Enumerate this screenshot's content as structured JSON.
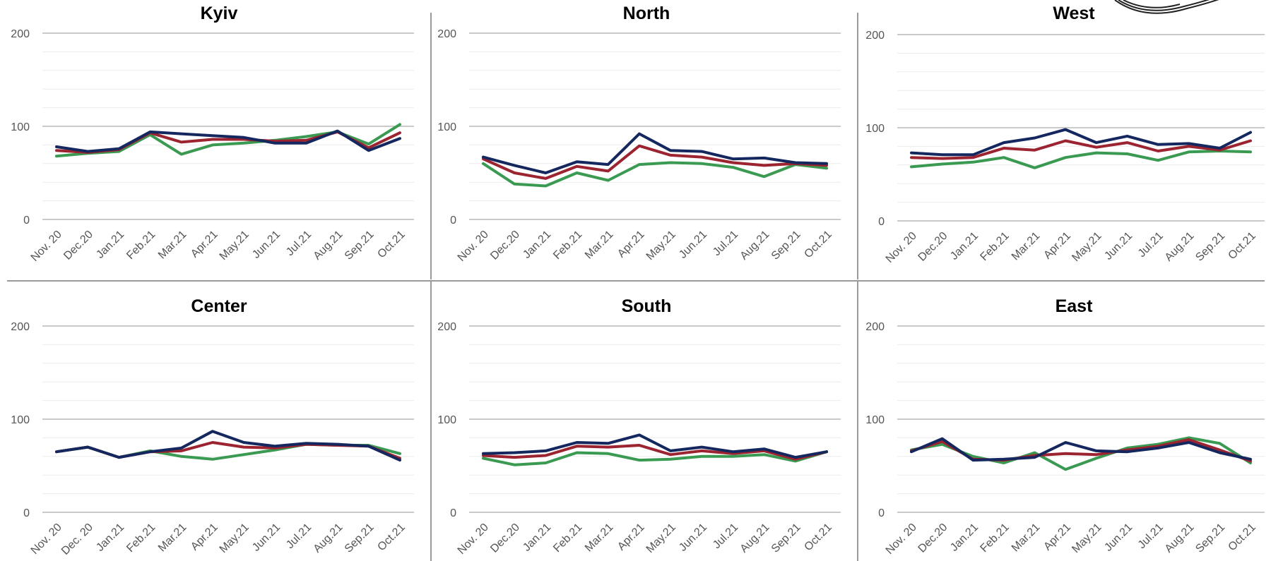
{
  "colors": {
    "series": [
      "#3a9a52",
      "#9b2430",
      "#14275e"
    ]
  },
  "chart_data": [
    {
      "type": "line",
      "title": "Kyiv",
      "categories": [
        "Nov. 20",
        "Dec.20",
        "Jan.21",
        "Feb.21",
        "Mar.21",
        "Apr.21",
        "May.21",
        "Jun.21",
        "Jul.21",
        "Aug.21",
        "Sep.21",
        "Oct.21"
      ],
      "ylim": [
        0,
        200
      ],
      "yticks": [
        "0",
        "100",
        "200"
      ],
      "series": [
        {
          "values": [
            68,
            71,
            73,
            91,
            70,
            80,
            82,
            85,
            89,
            94,
            81,
            102
          ]
        },
        {
          "values": [
            74,
            72,
            75,
            93,
            83,
            86,
            86,
            84,
            85,
            94,
            77,
            93
          ]
        },
        {
          "values": [
            78,
            73,
            76,
            94,
            92,
            90,
            88,
            82,
            82,
            95,
            74,
            87
          ]
        }
      ]
    },
    {
      "type": "line",
      "title": "North",
      "categories": [
        "Nov. 20",
        "Dec.20",
        "Jan.21",
        "Feb.21",
        "Mar.21",
        "Apr.21",
        "May.21",
        "Jun.21",
        "Jul.21",
        "Aug.21",
        "Sep.21",
        "Oct.21"
      ],
      "ylim": [
        0,
        200
      ],
      "yticks": [
        "0",
        "100",
        "200"
      ],
      "series": [
        {
          "values": [
            60,
            38,
            36,
            50,
            42,
            59,
            61,
            60,
            56,
            46,
            59,
            55
          ]
        },
        {
          "values": [
            65,
            50,
            44,
            57,
            52,
            79,
            69,
            67,
            61,
            58,
            60,
            58
          ]
        },
        {
          "values": [
            67,
            58,
            50,
            62,
            59,
            92,
            74,
            73,
            65,
            66,
            61,
            60
          ]
        }
      ]
    },
    {
      "type": "line",
      "title": "West",
      "categories": [
        "Nov. 20",
        "Dec.20",
        "Jan.21",
        "Feb.21",
        "Mar.21",
        "Apr.21",
        "May.21",
        "Jun.21",
        "Jul.21",
        "Aug.21",
        "Sep.21",
        "Oct.21"
      ],
      "ylim": [
        0,
        200
      ],
      "yticks": [
        "0",
        "100",
        "200"
      ],
      "series": [
        {
          "values": [
            58,
            61,
            63,
            68,
            57,
            68,
            73,
            72,
            65,
            74,
            75,
            74
          ]
        },
        {
          "values": [
            68,
            67,
            68,
            78,
            76,
            86,
            79,
            84,
            75,
            80,
            76,
            86
          ]
        },
        {
          "values": [
            73,
            71,
            71,
            84,
            89,
            98,
            84,
            91,
            82,
            83,
            78,
            95
          ]
        }
      ]
    },
    {
      "type": "line",
      "title": "Center",
      "categories": [
        "Nov. 20",
        "Dec. 20",
        "Jan.21",
        "Feb.21",
        "Mar.21",
        "Apr.21",
        "May.21",
        "Jun.21",
        "Jul.21",
        "Aug.21",
        "Sep.21",
        "Oct.21"
      ],
      "ylim": [
        0,
        200
      ],
      "yticks": [
        "0",
        "100",
        "200"
      ],
      "series": [
        {
          "values": [
            65,
            70,
            59,
            66,
            60,
            57,
            62,
            67,
            73,
            72,
            72,
            63
          ]
        },
        {
          "values": [
            65,
            70,
            59,
            65,
            66,
            75,
            70,
            69,
            73,
            72,
            71,
            58
          ]
        },
        {
          "values": [
            65,
            70,
            59,
            65,
            69,
            87,
            75,
            71,
            74,
            73,
            71,
            56
          ]
        }
      ]
    },
    {
      "type": "line",
      "title": "South",
      "categories": [
        "Nov. 20",
        "Dec.20",
        "Jan.21",
        "Feb.21",
        "Mar.21",
        "Apr.21",
        "May.21",
        "Jun.21",
        "Jul.21",
        "Aug.21",
        "Sep.21",
        "Oct.21"
      ],
      "ylim": [
        0,
        200
      ],
      "yticks": [
        "0",
        "100",
        "200"
      ],
      "series": [
        {
          "values": [
            58,
            51,
            53,
            64,
            63,
            56,
            57,
            60,
            60,
            62,
            55,
            65
          ]
        },
        {
          "values": [
            61,
            59,
            61,
            71,
            70,
            72,
            62,
            66,
            63,
            66,
            57,
            65
          ]
        },
        {
          "values": [
            63,
            64,
            66,
            75,
            74,
            83,
            66,
            70,
            65,
            68,
            59,
            65
          ]
        }
      ]
    },
    {
      "type": "line",
      "title": "East",
      "categories": [
        "Nov. 20",
        "Dec.20",
        "Jan.21",
        "Feb.21",
        "Mar.21",
        "Apr.21",
        "May.21",
        "Jun.21",
        "Jul.21",
        "Aug.21",
        "Sep.21",
        "Oct.21"
      ],
      "ylim": [
        0,
        200
      ],
      "yticks": [
        "0",
        "100",
        "200"
      ],
      "series": [
        {
          "values": [
            67,
            73,
            60,
            53,
            64,
            46,
            58,
            69,
            73,
            80,
            74,
            53
          ]
        },
        {
          "values": [
            66,
            76,
            57,
            56,
            61,
            63,
            62,
            67,
            71,
            78,
            67,
            55
          ]
        },
        {
          "values": [
            65,
            79,
            56,
            57,
            59,
            75,
            66,
            65,
            69,
            75,
            64,
            57
          ]
        }
      ]
    }
  ]
}
